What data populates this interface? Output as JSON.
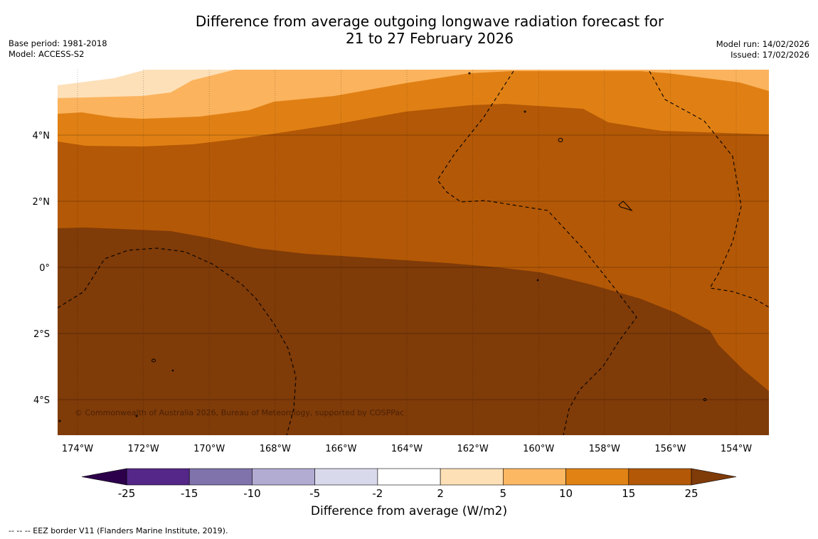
{
  "title": {
    "line1": "Difference from average outgoing longwave radiation forecast for",
    "line2": "21 to 27 February 2026"
  },
  "meta_left": {
    "base_period": "Base period: 1981-2018",
    "model": "Model: ACCESS-S2"
  },
  "meta_right": {
    "model_run": "Model run: 14/02/2026",
    "issued": "Issued: 17/02/2026"
  },
  "map": {
    "lon_labels": [
      "174°W",
      "172°W",
      "170°W",
      "168°W",
      "166°W",
      "164°W",
      "162°W",
      "160°W",
      "158°W",
      "156°W",
      "154°W"
    ],
    "lat_labels": [
      "4°N",
      "2°N",
      "0°",
      "2°S",
      "4°S"
    ],
    "copyright": "© Commonwealth of Australia 2026, Bureau of Meteorology, supported by COSPPac",
    "colors": {
      "band_2_5": "#fde0b8",
      "band_5_10": "#fbb35d",
      "band_10_15": "#e08014",
      "band_15_25": "#b35806",
      "band_gt_25": "#7f3b08"
    }
  },
  "colorbar": {
    "tick_labels": [
      "-25",
      "-15",
      "-10",
      "-5",
      "-2",
      "2",
      "5",
      "10",
      "15",
      "25"
    ],
    "segment_colors": [
      "#542788",
      "#8073ac",
      "#b2abd2",
      "#d8daeb",
      "#ffffff",
      "#fee0b6",
      "#fdb863",
      "#e08214",
      "#b35806"
    ],
    "under_color": "#2d004b",
    "over_color": "#7f3b08",
    "title": "Difference from average (W/m2)"
  },
  "footer": "--  --  -- EEZ border V11 (Flanders Marine Institute, 2019)."
}
